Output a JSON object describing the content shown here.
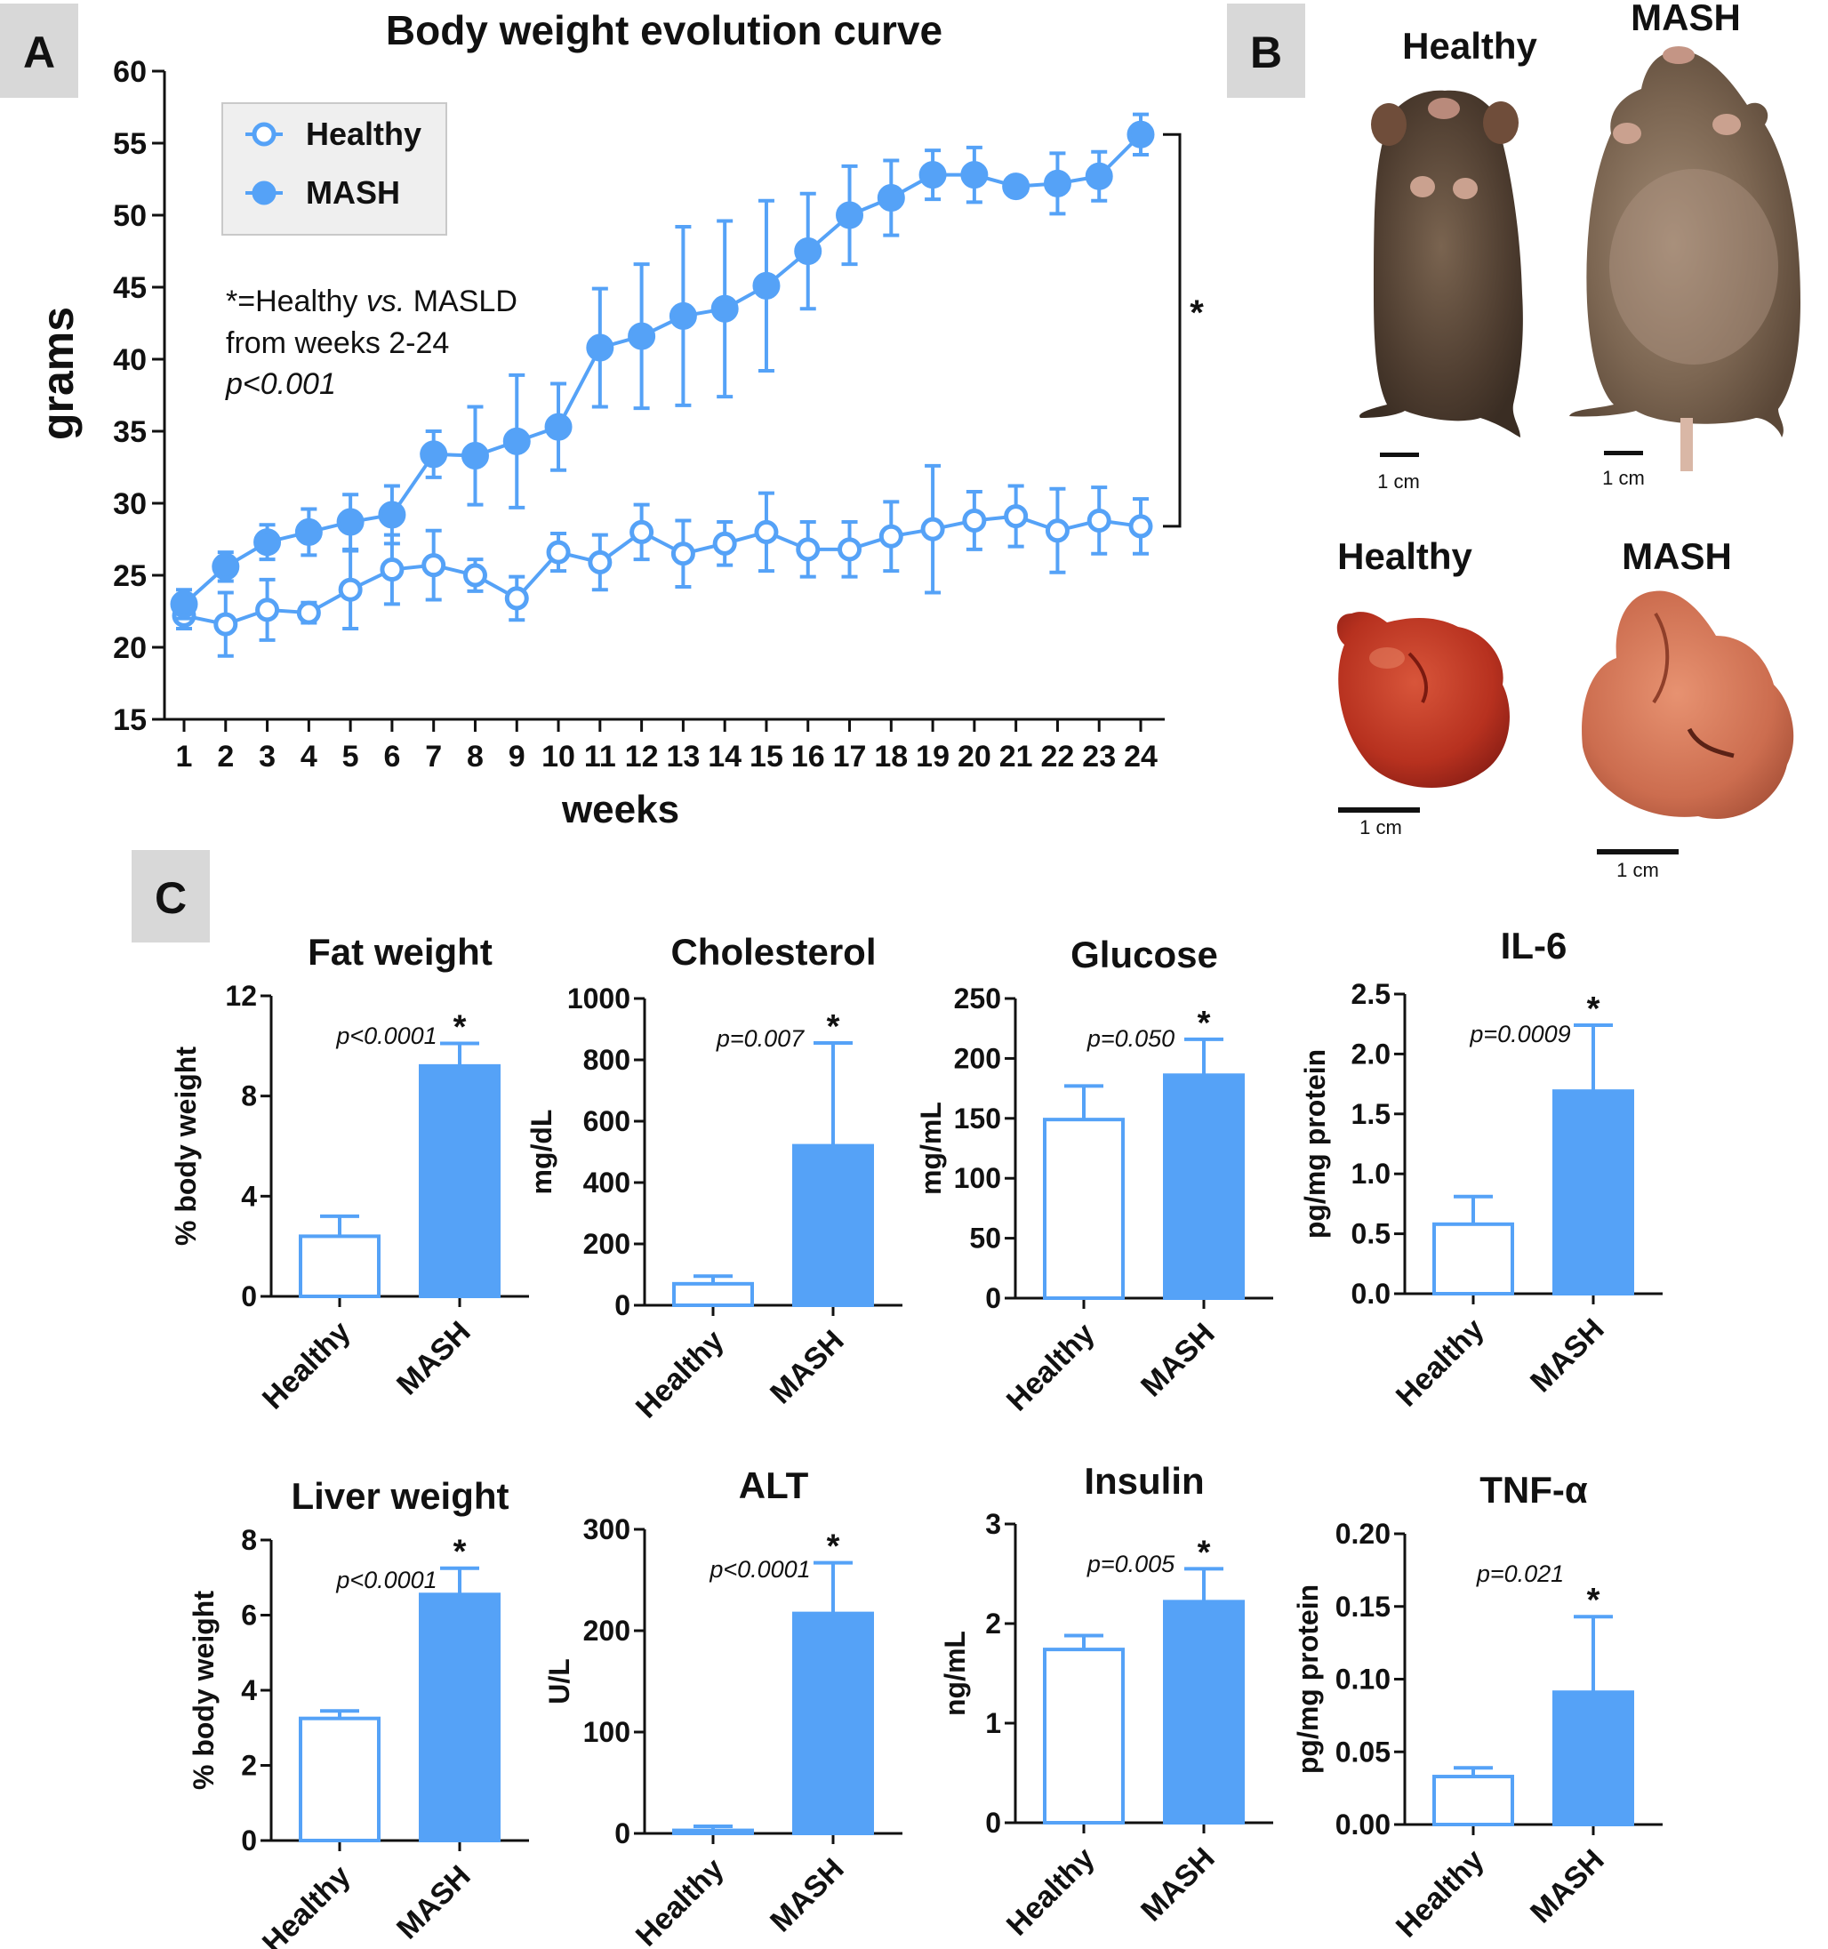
{
  "panels": {
    "A": {
      "label": "A"
    },
    "B": {
      "label": "B"
    },
    "C": {
      "label": "C"
    }
  },
  "colors": {
    "accent": "#55a2f7",
    "fill": "#55a2f7",
    "text": "#111111",
    "panel_label_bg": "#d8d8d8",
    "legend_bg": "#efefef"
  },
  "chart_data": [
    {
      "id": "body_weight",
      "type": "line",
      "title": "Body weight evolution curve",
      "xlabel": "weeks",
      "ylabel": "grams",
      "x": [
        1,
        2,
        3,
        4,
        5,
        6,
        7,
        8,
        9,
        10,
        11,
        12,
        13,
        14,
        15,
        16,
        17,
        18,
        19,
        20,
        21,
        22,
        23,
        24
      ],
      "xticks": [
        "1",
        "2",
        "3",
        "4",
        "5",
        "6",
        "7",
        "8",
        "9",
        "10",
        "11",
        "12",
        "13",
        "14",
        "15",
        "16",
        "17",
        "18",
        "19",
        "20",
        "21",
        "22",
        "23",
        "24"
      ],
      "ylim": [
        15,
        60
      ],
      "yticks": [
        "15",
        "20",
        "25",
        "30",
        "35",
        "40",
        "45",
        "50",
        "55",
        "60"
      ],
      "series": [
        {
          "name": "Healthy",
          "marker": "open-circle",
          "values": [
            22.2,
            21.6,
            22.6,
            22.4,
            24.0,
            25.4,
            25.7,
            25.0,
            23.4,
            26.6,
            25.9,
            28.0,
            26.5,
            27.2,
            28.0,
            26.8,
            26.8,
            27.7,
            28.2,
            28.8,
            29.1,
            28.1,
            28.8,
            28.4
          ],
          "errors": [
            0.9,
            2.2,
            2.1,
            0.7,
            2.7,
            2.4,
            2.4,
            1.1,
            1.5,
            1.3,
            1.9,
            1.9,
            2.3,
            1.5,
            2.7,
            1.9,
            1.9,
            2.4,
            4.4,
            2.0,
            2.1,
            2.9,
            2.3,
            1.9
          ]
        },
        {
          "name": "MASH",
          "marker": "filled-circle",
          "values": [
            23.0,
            25.6,
            27.3,
            28.0,
            28.7,
            29.2,
            33.4,
            33.3,
            34.3,
            35.3,
            40.8,
            41.6,
            43.0,
            43.5,
            45.1,
            47.5,
            50.0,
            51.2,
            52.8,
            52.8,
            52.0,
            52.2,
            52.7,
            55.6
          ],
          "errors": [
            1.0,
            1.0,
            1.2,
            1.6,
            1.9,
            2.0,
            1.6,
            3.4,
            4.6,
            3.0,
            4.1,
            5.0,
            6.2,
            6.1,
            5.9,
            4.0,
            3.4,
            2.6,
            1.7,
            1.9,
            0.6,
            2.1,
            1.7,
            1.4
          ]
        }
      ],
      "annotation_lines": [
        "*=Healthy ",
        "vs.",
        " MASLD",
        "from weeks 2-24",
        "p<0.001"
      ],
      "bracket_label": "*",
      "legend_position": "top-left"
    },
    {
      "id": "fat_weight",
      "type": "bar",
      "title": "Fat weight",
      "ylabel": "% body weight",
      "categories": [
        "Healthy",
        "MASH"
      ],
      "values": [
        2.4,
        9.2
      ],
      "errors": [
        0.8,
        0.9
      ],
      "ylim": [
        0,
        12
      ],
      "yticks": [
        "0",
        "4",
        "8",
        "12"
      ],
      "p_value": "p<0.0001",
      "sig": "*"
    },
    {
      "id": "cholesterol",
      "type": "bar",
      "title": "Cholesterol",
      "ylabel": "mg/dL",
      "categories": [
        "Healthy",
        "MASH"
      ],
      "values": [
        70,
        520
      ],
      "errors": [
        25,
        335
      ],
      "ylim": [
        0,
        1000
      ],
      "yticks": [
        "0",
        "200",
        "400",
        "600",
        "800",
        "1000"
      ],
      "p_value": "p=0.007",
      "sig": "*"
    },
    {
      "id": "glucose",
      "type": "bar",
      "title": "Glucose",
      "ylabel": "mg/mL",
      "categories": [
        "Healthy",
        "MASH"
      ],
      "values": [
        149,
        186
      ],
      "errors": [
        28,
        30
      ],
      "ylim": [
        0,
        250
      ],
      "yticks": [
        "0",
        "50",
        "100",
        "150",
        "200",
        "250"
      ],
      "p_value": "p=0.050",
      "sig": "*"
    },
    {
      "id": "il6",
      "type": "bar",
      "title": "IL-6",
      "ylabel": "pg/mg protein",
      "categories": [
        "Healthy",
        "MASH"
      ],
      "values": [
        0.58,
        1.69
      ],
      "errors": [
        0.23,
        0.55
      ],
      "ylim": [
        0,
        2.5
      ],
      "yticks": [
        "0.0",
        "0.5",
        "1.0",
        "1.5",
        "2.0",
        "2.5"
      ],
      "p_value": "p=0.0009",
      "sig": "*"
    },
    {
      "id": "liver_weight",
      "type": "bar",
      "title": "Liver weight",
      "ylabel": "% body weight",
      "categories": [
        "Healthy",
        "MASH"
      ],
      "values": [
        3.25,
        6.55
      ],
      "errors": [
        0.2,
        0.7
      ],
      "ylim": [
        0,
        8
      ],
      "yticks": [
        "0",
        "2",
        "4",
        "6",
        "8"
      ],
      "p_value": "p<0.0001",
      "sig": "*"
    },
    {
      "id": "alt",
      "type": "bar",
      "title": "ALT",
      "ylabel": "U/L",
      "categories": [
        "Healthy",
        "MASH"
      ],
      "values": [
        3,
        217
      ],
      "errors": [
        4,
        50
      ],
      "ylim": [
        0,
        300
      ],
      "yticks": [
        "0",
        "100",
        "200",
        "300"
      ],
      "p_value": "p<0.0001",
      "sig": "*"
    },
    {
      "id": "insulin",
      "type": "bar",
      "title": "Insulin",
      "ylabel": "ng/mL",
      "categories": [
        "Healthy",
        "MASH"
      ],
      "values": [
        1.74,
        2.22
      ],
      "errors": [
        0.14,
        0.33
      ],
      "ylim": [
        0,
        3
      ],
      "yticks": [
        "0",
        "1",
        "2",
        "3"
      ],
      "p_value": "p=0.005",
      "sig": "*"
    },
    {
      "id": "tnfa",
      "type": "bar",
      "title": "TNF-α",
      "ylabel": "pg/mg protein",
      "categories": [
        "Healthy",
        "MASH"
      ],
      "values": [
        0.033,
        0.091
      ],
      "errors": [
        0.006,
        0.052
      ],
      "ylim": [
        0,
        0.2
      ],
      "yticks": [
        "0.00",
        "0.05",
        "0.10",
        "0.15",
        "0.20"
      ],
      "p_value": "p=0.021",
      "sig": "*"
    }
  ],
  "photos": {
    "mouse_healthy_label": "Healthy",
    "mouse_mash_label": "MASH",
    "liver_healthy_label": "Healthy",
    "liver_mash_label": "MASH",
    "scale_label": "1 cm"
  }
}
